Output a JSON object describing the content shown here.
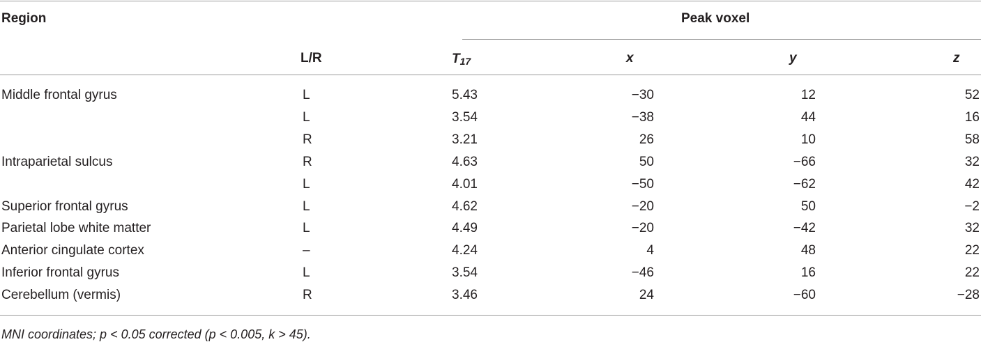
{
  "table": {
    "header": {
      "region": "Region",
      "peak": "Peak voxel",
      "lr": "L/R",
      "t_label": "T",
      "t_sub": "17",
      "x": "x",
      "y": "y",
      "z": "z"
    },
    "rows": [
      [
        "Middle frontal gyrus",
        "L",
        "5.43",
        "−30",
        "12",
        "52"
      ],
      [
        null,
        "L",
        "3.54",
        "−38",
        "44",
        "16"
      ],
      [
        null,
        "R",
        "3.21",
        "26",
        "10",
        "58"
      ],
      [
        "Intraparietal sulcus",
        "R",
        "4.63",
        "50",
        "−66",
        "32"
      ],
      [
        null,
        "L",
        "4.01",
        "−50",
        "−62",
        "42"
      ],
      [
        "Superior frontal gyrus",
        "L",
        "4.62",
        "−20",
        "50",
        "−2"
      ],
      [
        "Parietal lobe white matter",
        "L",
        "4.49",
        "−20",
        "−42",
        "32"
      ],
      [
        "Anterior cingulate cortex",
        "–",
        "4.24",
        "4",
        "48",
        "22"
      ],
      [
        "Inferior frontal gyrus",
        "L",
        "3.54",
        "−46",
        "16",
        "22"
      ],
      [
        "Cerebellum (vermis)",
        "R",
        "3.46",
        "24",
        "−60",
        "−28"
      ]
    ],
    "footnote": "MNI coordinates; p < 0.05 corrected (p < 0.005, k > 45)."
  }
}
